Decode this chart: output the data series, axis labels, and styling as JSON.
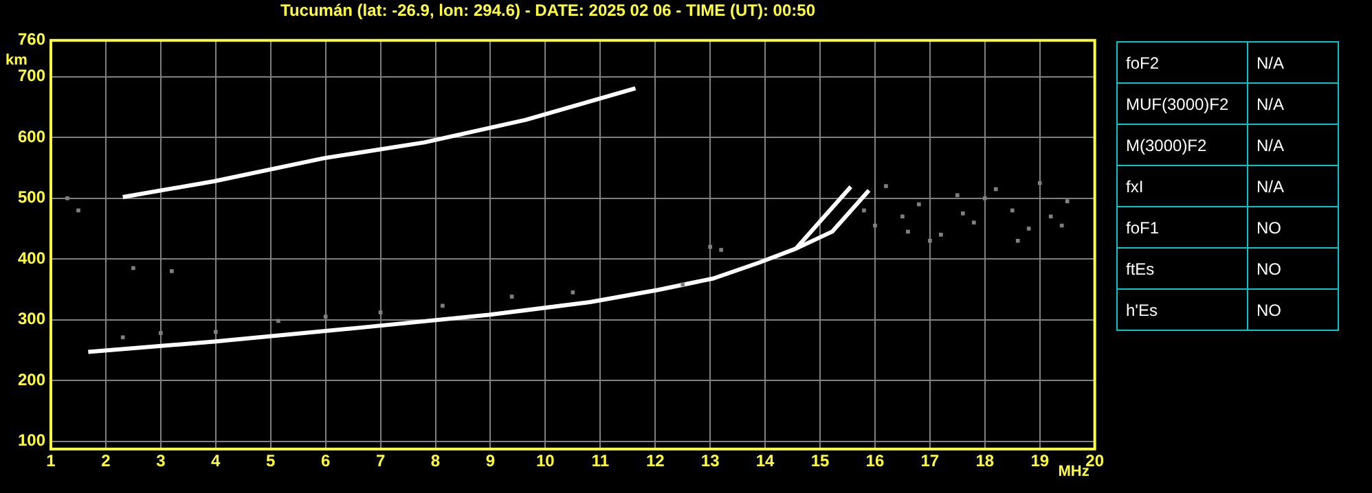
{
  "chart_data": [
    {
      "type": "scatter",
      "title": "Tucumán (lat: -26.9, lon: 294.6) - DATE: 2025 02 06 - TIME (UT): 00:50",
      "xlabel": "MHz",
      "ylabel": "km",
      "xlim": [
        1,
        20
      ],
      "xticks": [
        1,
        2,
        3,
        4,
        5,
        6,
        7,
        8,
        9,
        10,
        11,
        12,
        13,
        14,
        15,
        16,
        17,
        18,
        19,
        20
      ],
      "ylim": [
        87,
        760
      ],
      "yticks": [
        100,
        200,
        300,
        400,
        500,
        600,
        700,
        760
      ],
      "grid": true,
      "legend": false,
      "series": [
        {
          "type": "line",
          "color": "#ffffff",
          "x": [
            1.68,
            3.97,
            6.64,
            8.97,
            10.81,
            12.05,
            13.06,
            13.89,
            14.56,
            15.06,
            15.56
          ],
          "values": [
            247,
            264,
            287,
            308,
            329,
            349,
            368,
            394,
            417,
            468,
            519
          ]
        },
        {
          "type": "line",
          "color": "#ffffff",
          "x": [
            14.56,
            15.22,
            15.89
          ],
          "values": [
            417,
            445,
            513
          ]
        },
        {
          "type": "line",
          "color": "#ffffff",
          "x": [
            2.31,
            3.97,
            5.97,
            7.8,
            9.64,
            11.64
          ],
          "values": [
            502,
            528,
            566,
            592,
            629,
            681
          ]
        },
        {
          "color": "#808080",
          "marker": "square",
          "x": [
            2.31,
            3.0,
            4.0,
            5.14,
            6.0,
            7.0,
            8.13,
            9.39,
            10.5,
            12.5,
            13.0,
            13.2,
            2.5,
            3.2,
            1.3,
            1.5,
            16.2,
            16.5,
            16.8,
            17.2,
            17.5,
            17.8,
            18.2,
            18.5,
            18.8,
            19.2,
            19.5,
            16.0,
            17.0,
            18.0,
            19.0,
            15.8,
            16.6,
            17.6,
            18.6,
            19.4
          ],
          "values": [
            271,
            278,
            280,
            298,
            305,
            312,
            323,
            338,
            345,
            358,
            420,
            415,
            385,
            380,
            500,
            480,
            520,
            470,
            490,
            440,
            505,
            460,
            515,
            480,
            450,
            470,
            495,
            455,
            430,
            500,
            525,
            480,
            445,
            475,
            430,
            455
          ]
        }
      ]
    },
    {
      "type": "other",
      "annotations": [
        "foF2",
        "N/A",
        "MUF(3000)F2",
        "N/A",
        "M(3000)F2",
        "N/A",
        "fxI",
        "N/A",
        "foF1",
        "NO",
        "ftEs",
        "NO",
        "h'Es",
        "NO"
      ]
    }
  ]
}
